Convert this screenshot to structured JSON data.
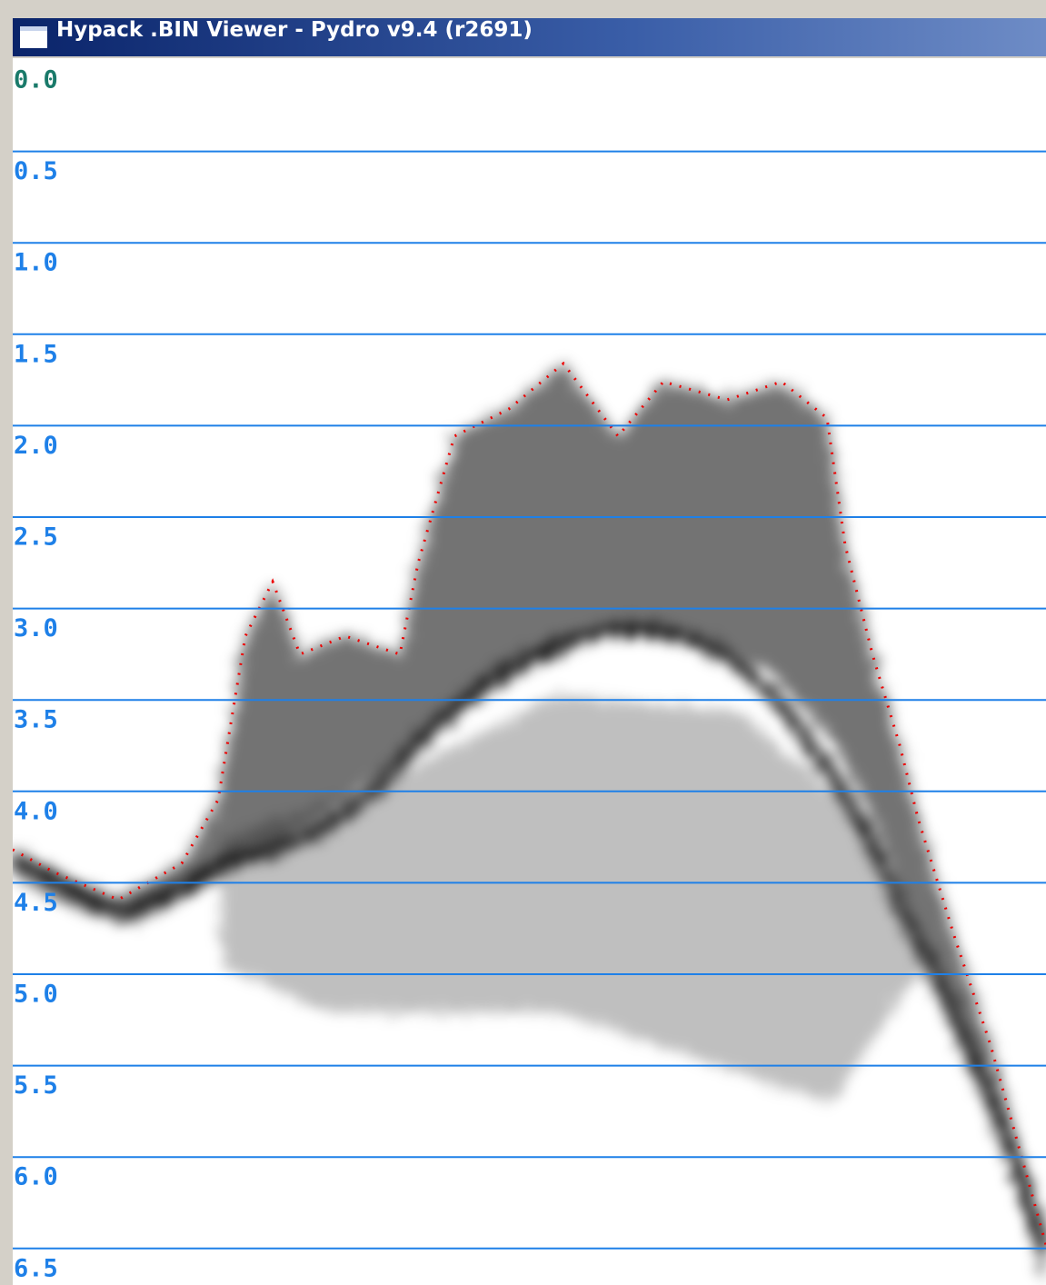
{
  "window": {
    "title": "Hypack .BIN Viewer - Pydro v9.4 (r2691)"
  },
  "depth_scale": {
    "labels": [
      "0.0",
      "0.5",
      "1.0",
      "1.5",
      "2.0",
      "2.5",
      "3.0",
      "3.5",
      "4.0",
      "4.5",
      "5.0",
      "5.5",
      "6.0",
      "6.5"
    ]
  }
}
